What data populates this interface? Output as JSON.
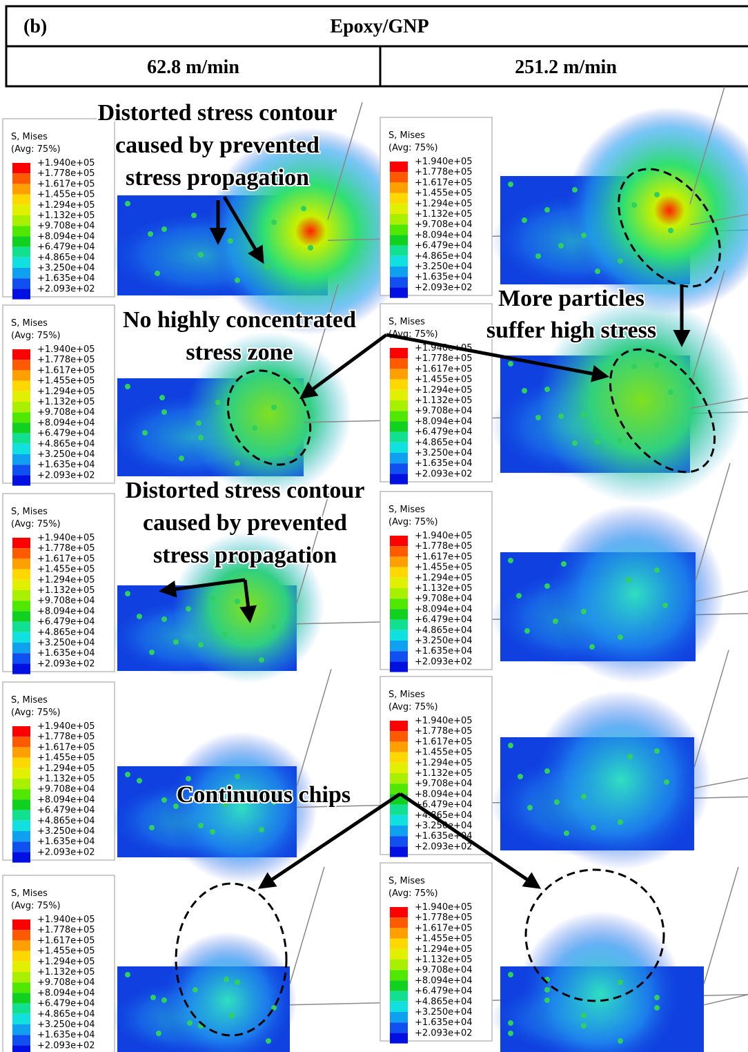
{
  "header": {
    "label": "(b)",
    "title": "Epoxy/GNP",
    "columns": [
      "62.8 m/min",
      "251.2 m/min"
    ]
  },
  "legend": {
    "title": "S, Mises",
    "subtitle": "(Avg: 75%)",
    "levels": [
      "+1.940e+05",
      "+1.778e+05",
      "+1.617e+05",
      "+1.455e+05",
      "+1.294e+05",
      "+1.132e+05",
      "+9.708e+04",
      "+8.094e+04",
      "+6.479e+04",
      "+4.865e+04",
      "+3.250e+04",
      "+1.635e+04",
      "+2.093e+02"
    ]
  },
  "annotations": [
    {
      "lines": [
        "Distorted stress contour",
        "caused by prevented",
        "stress propagation"
      ]
    },
    {
      "lines": [
        "No highly concentrated",
        "stress zone"
      ]
    },
    {
      "lines": [
        "More particles",
        "suffer high stress"
      ]
    },
    {
      "lines": [
        "Distorted stress contour",
        "caused by prevented",
        "stress propagation"
      ]
    },
    {
      "lines": [
        "Continuous chips"
      ]
    }
  ]
}
